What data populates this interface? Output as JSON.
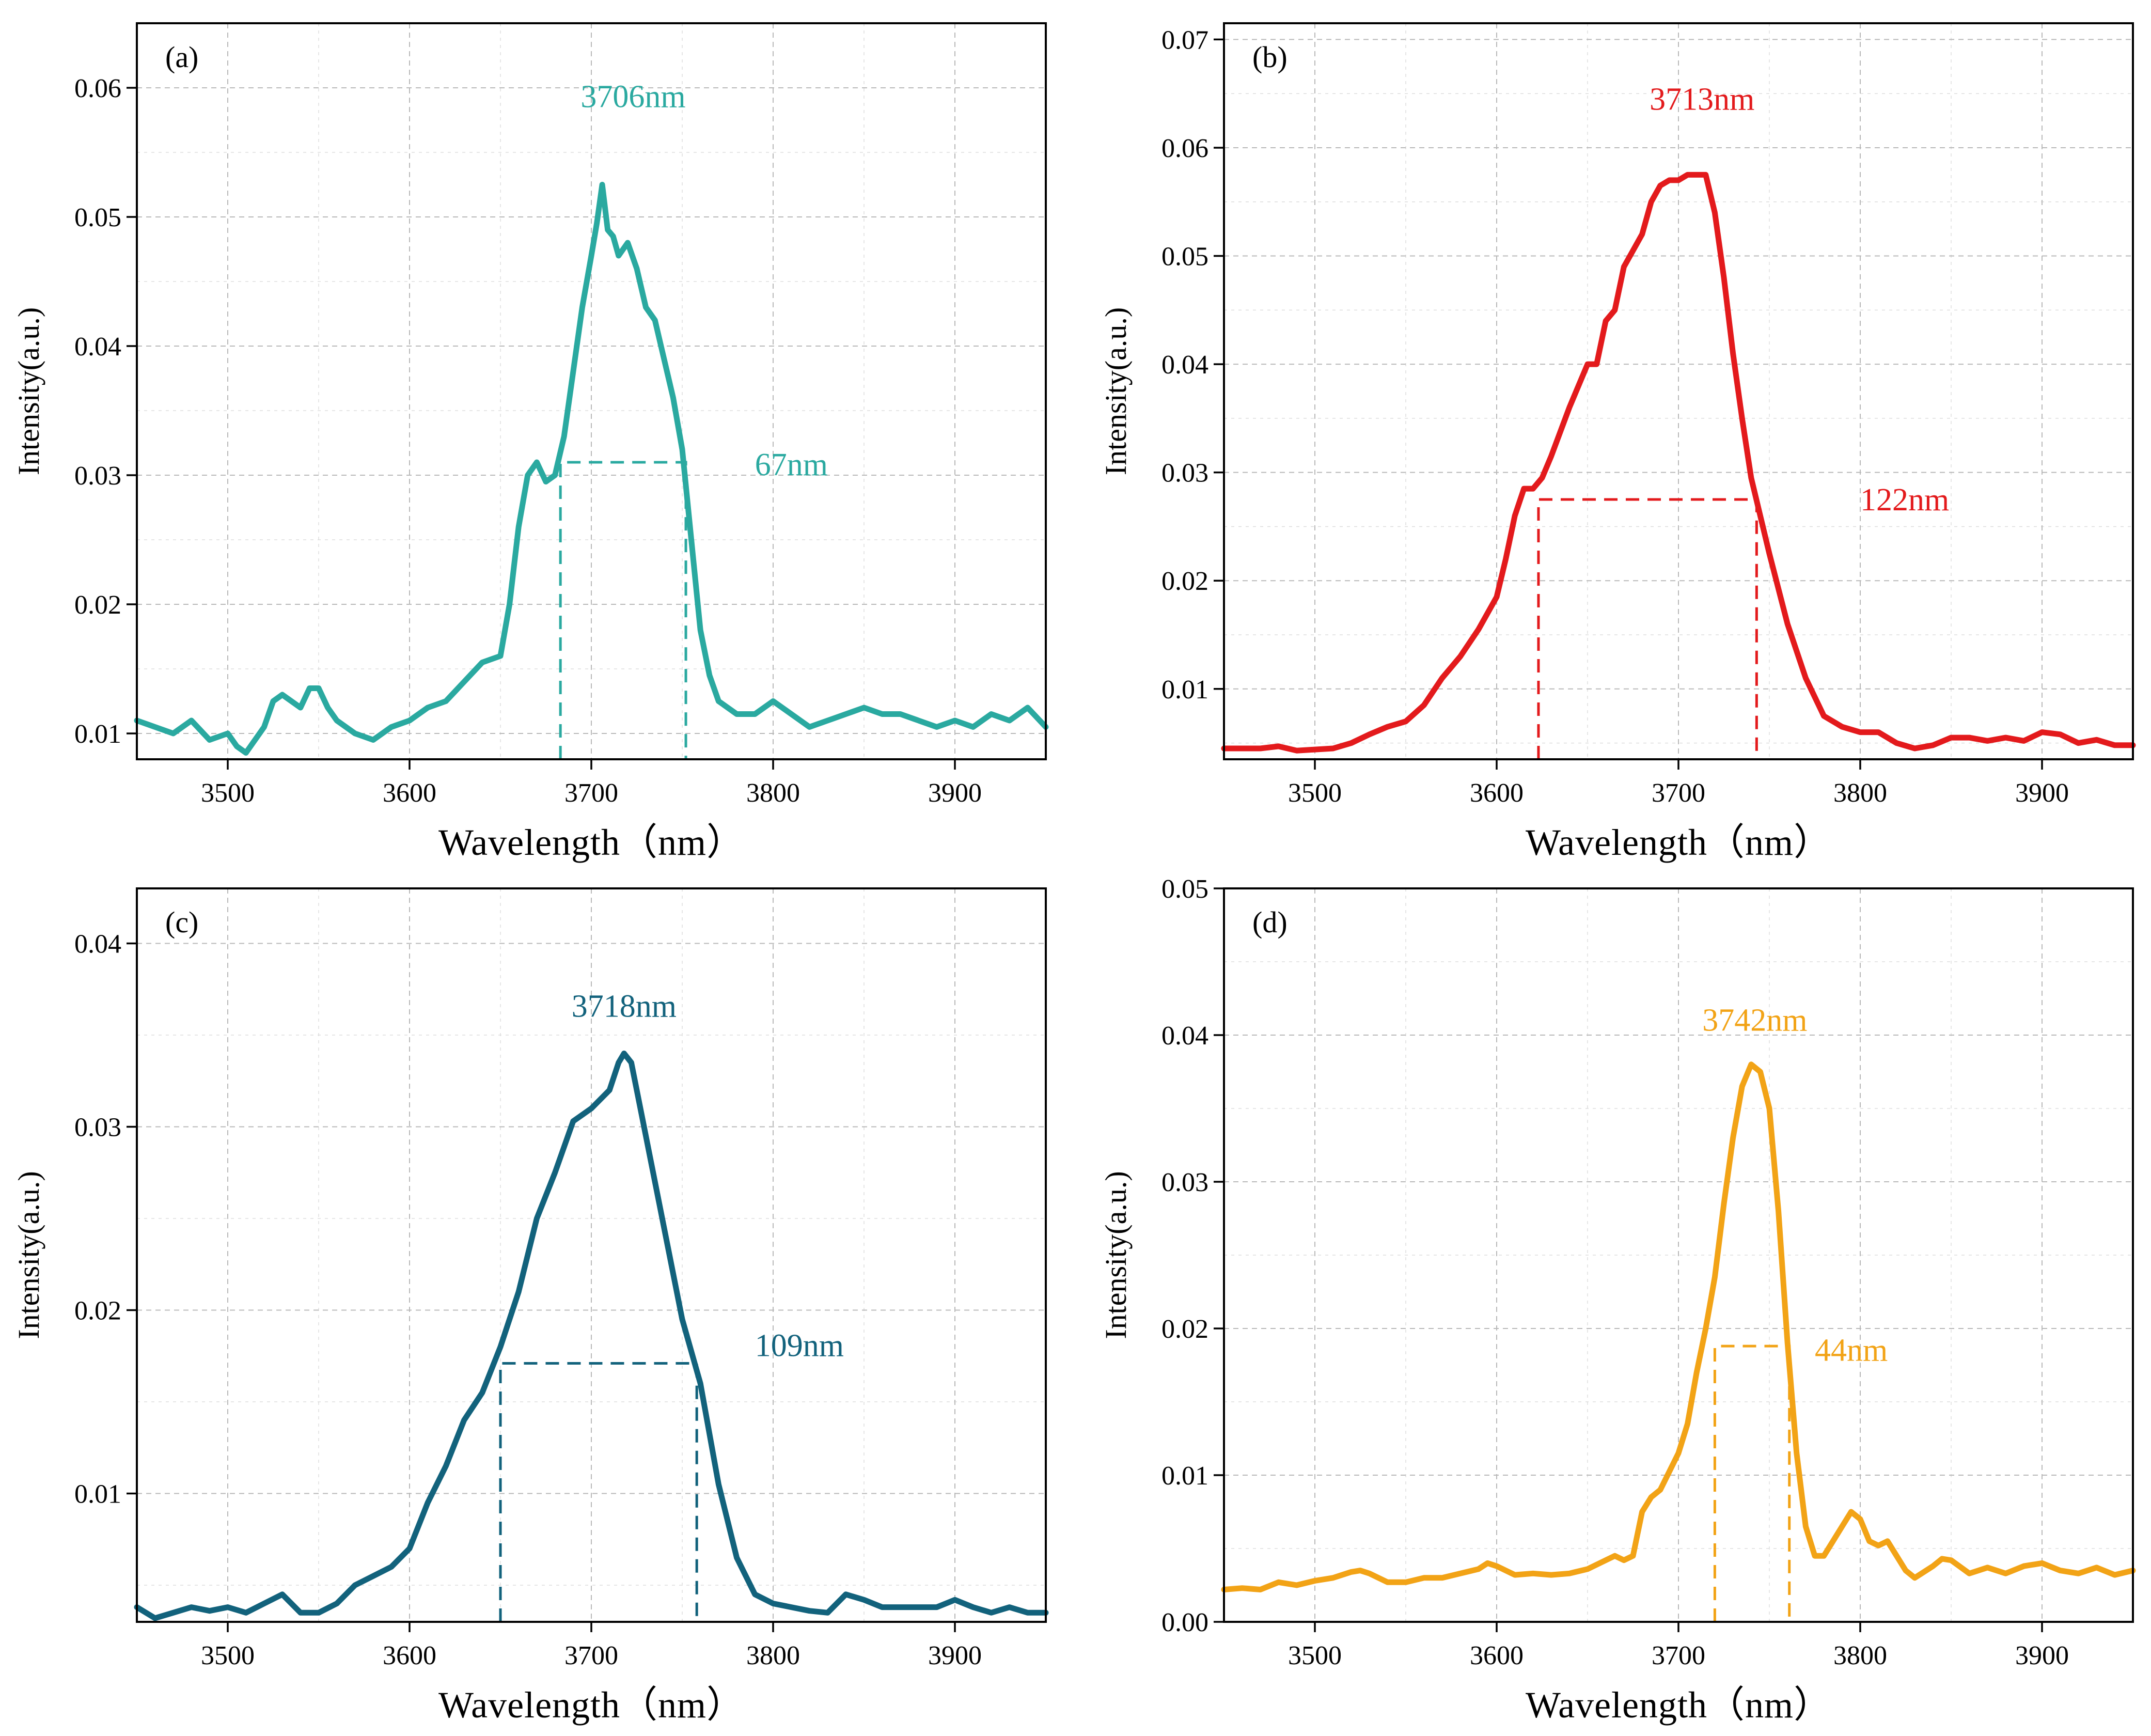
{
  "chart_data": [
    {
      "type": "line",
      "panel_label": "(a)",
      "xlabel": "Wavelength（nm）",
      "ylabel": "Intensity(a.u.)",
      "xlim": [
        3450,
        3950
      ],
      "ylim": [
        0.008,
        0.065
      ],
      "xticks": [
        3500,
        3600,
        3700,
        3800,
        3900
      ],
      "xtick_labels": [
        "3500",
        "3600",
        "3700",
        "3800",
        "3900"
      ],
      "yticks": [
        0.01,
        0.02,
        0.03,
        0.04,
        0.05,
        0.06
      ],
      "ytick_labels": [
        "0.01",
        "0.02",
        "0.03",
        "0.04",
        "0.05",
        "0.06"
      ],
      "color": "#2aa9a0",
      "peak_label": "3706nm",
      "peak_label_at": [
        3723,
        0.0585
      ],
      "fwhm_label": "67nm",
      "fwhm_label_at": [
        3790,
        0.03
      ],
      "fwhm": {
        "x1": 3683,
        "x2": 3752,
        "y": 0.031
      },
      "x": [
        3450,
        3460,
        3470,
        3480,
        3490,
        3500,
        3505,
        3510,
        3515,
        3520,
        3525,
        3530,
        3540,
        3545,
        3550,
        3555,
        3560,
        3570,
        3580,
        3590,
        3600,
        3610,
        3620,
        3630,
        3640,
        3650,
        3655,
        3660,
        3665,
        3670,
        3675,
        3680,
        3685,
        3690,
        3695,
        3700,
        3703,
        3706,
        3709,
        3712,
        3715,
        3720,
        3725,
        3730,
        3735,
        3740,
        3745,
        3750,
        3755,
        3760,
        3765,
        3770,
        3775,
        3780,
        3790,
        3800,
        3810,
        3820,
        3830,
        3840,
        3850,
        3860,
        3870,
        3880,
        3890,
        3900,
        3910,
        3920,
        3930,
        3940,
        3950
      ],
      "values": [
        0.011,
        0.0105,
        0.01,
        0.011,
        0.0095,
        0.01,
        0.009,
        0.0085,
        0.0095,
        0.0105,
        0.0125,
        0.013,
        0.012,
        0.0135,
        0.0135,
        0.012,
        0.011,
        0.01,
        0.0095,
        0.0105,
        0.011,
        0.012,
        0.0125,
        0.014,
        0.0155,
        0.016,
        0.02,
        0.026,
        0.03,
        0.031,
        0.0295,
        0.03,
        0.033,
        0.038,
        0.043,
        0.047,
        0.0495,
        0.0525,
        0.049,
        0.0485,
        0.047,
        0.048,
        0.046,
        0.043,
        0.042,
        0.039,
        0.036,
        0.032,
        0.025,
        0.018,
        0.0145,
        0.0125,
        0.012,
        0.0115,
        0.0115,
        0.0125,
        0.0115,
        0.0105,
        0.011,
        0.0115,
        0.012,
        0.0115,
        0.0115,
        0.011,
        0.0105,
        0.011,
        0.0105,
        0.0115,
        0.011,
        0.012,
        0.0105
      ]
    },
    {
      "type": "line",
      "panel_label": "(b)",
      "xlabel": "Wavelength（nm）",
      "ylabel": "Intensity(a.u.)",
      "xlim": [
        3450,
        3950
      ],
      "ylim": [
        0.0035,
        0.0715
      ],
      "xticks": [
        3500,
        3600,
        3700,
        3800,
        3900
      ],
      "xtick_labels": [
        "3500",
        "3600",
        "3700",
        "3800",
        "3900"
      ],
      "yticks": [
        0.01,
        0.02,
        0.03,
        0.04,
        0.05,
        0.06,
        0.07
      ],
      "ytick_labels": [
        "0.01",
        "0.02",
        "0.03",
        "0.04",
        "0.05",
        "0.06",
        "0.07"
      ],
      "color": "#e31a1c",
      "peak_label": "3713nm",
      "peak_label_at": [
        3713,
        0.0635
      ],
      "fwhm_label": "122nm",
      "fwhm_label_at": [
        3800,
        0.0265
      ],
      "fwhm": {
        "x1": 3623,
        "x2": 3743,
        "y": 0.0275
      },
      "x": [
        3450,
        3460,
        3470,
        3480,
        3490,
        3500,
        3510,
        3520,
        3530,
        3540,
        3550,
        3560,
        3570,
        3580,
        3590,
        3600,
        3605,
        3610,
        3615,
        3620,
        3625,
        3630,
        3640,
        3650,
        3655,
        3660,
        3665,
        3670,
        3675,
        3680,
        3685,
        3690,
        3695,
        3700,
        3705,
        3710,
        3715,
        3720,
        3725,
        3730,
        3735,
        3740,
        3745,
        3750,
        3760,
        3770,
        3780,
        3790,
        3800,
        3810,
        3820,
        3830,
        3840,
        3850,
        3860,
        3870,
        3880,
        3890,
        3900,
        3910,
        3920,
        3930,
        3940,
        3950
      ],
      "values": [
        0.0045,
        0.0045,
        0.0045,
        0.0047,
        0.0043,
        0.0044,
        0.0045,
        0.005,
        0.0058,
        0.0065,
        0.007,
        0.0085,
        0.011,
        0.013,
        0.0155,
        0.0185,
        0.022,
        0.026,
        0.0285,
        0.0285,
        0.0295,
        0.0315,
        0.036,
        0.04,
        0.04,
        0.044,
        0.045,
        0.049,
        0.0505,
        0.052,
        0.055,
        0.0565,
        0.057,
        0.057,
        0.0575,
        0.0575,
        0.0575,
        0.054,
        0.048,
        0.041,
        0.035,
        0.0295,
        0.026,
        0.0225,
        0.016,
        0.011,
        0.0075,
        0.0065,
        0.006,
        0.006,
        0.005,
        0.0045,
        0.0048,
        0.0055,
        0.0055,
        0.0052,
        0.0055,
        0.0052,
        0.006,
        0.0058,
        0.005,
        0.0053,
        0.0048,
        0.0048
      ]
    },
    {
      "type": "line",
      "panel_label": "(c)",
      "xlabel": "Wavelength（nm）",
      "ylabel": "Intensity(a.u.)",
      "xlim": [
        3450,
        3950
      ],
      "ylim": [
        0.003,
        0.043
      ],
      "xticks": [
        3500,
        3600,
        3700,
        3800,
        3900
      ],
      "xtick_labels": [
        "3500",
        "3600",
        "3700",
        "3800",
        "3900"
      ],
      "yticks": [
        0.01,
        0.02,
        0.03,
        0.04
      ],
      "ytick_labels": [
        "0.01",
        "0.02",
        "0.03",
        "0.04"
      ],
      "color": "#12627c",
      "peak_label": "3718nm",
      "peak_label_at": [
        3718,
        0.036
      ],
      "fwhm_label": "109nm",
      "fwhm_label_at": [
        3790,
        0.0175
      ],
      "fwhm": {
        "x1": 3650,
        "x2": 3758,
        "y": 0.0171
      },
      "x": [
        3450,
        3460,
        3470,
        3480,
        3490,
        3500,
        3510,
        3520,
        3530,
        3540,
        3550,
        3560,
        3570,
        3580,
        3590,
        3600,
        3610,
        3620,
        3630,
        3640,
        3650,
        3660,
        3670,
        3680,
        3690,
        3700,
        3710,
        3715,
        3718,
        3722,
        3730,
        3740,
        3750,
        3760,
        3770,
        3780,
        3790,
        3800,
        3810,
        3820,
        3830,
        3840,
        3850,
        3860,
        3870,
        3880,
        3890,
        3900,
        3910,
        3920,
        3930,
        3940,
        3950
      ],
      "values": [
        0.0038,
        0.0032,
        0.0035,
        0.0038,
        0.0036,
        0.0038,
        0.0035,
        0.004,
        0.0045,
        0.0035,
        0.0035,
        0.004,
        0.005,
        0.0055,
        0.006,
        0.007,
        0.0095,
        0.0115,
        0.014,
        0.0155,
        0.018,
        0.021,
        0.025,
        0.0275,
        0.0303,
        0.031,
        0.032,
        0.0335,
        0.034,
        0.0335,
        0.0295,
        0.0245,
        0.0195,
        0.016,
        0.0105,
        0.0065,
        0.0045,
        0.004,
        0.0038,
        0.0036,
        0.0035,
        0.0045,
        0.0042,
        0.0038,
        0.0038,
        0.0038,
        0.0038,
        0.0042,
        0.0038,
        0.0035,
        0.0038,
        0.0035,
        0.0035
      ]
    },
    {
      "type": "line",
      "panel_label": "(d)",
      "xlabel": "Wavelength（nm）",
      "ylabel": "Intensity(a.u.)",
      "xlim": [
        3450,
        3950
      ],
      "ylim": [
        0.0,
        0.05
      ],
      "xticks": [
        3500,
        3600,
        3700,
        3800,
        3900
      ],
      "xtick_labels": [
        "3500",
        "3600",
        "3700",
        "3800",
        "3900"
      ],
      "yticks": [
        0.0,
        0.01,
        0.02,
        0.03,
        0.04,
        0.05
      ],
      "ytick_labels": [
        "0.00",
        "0.01",
        "0.02",
        "0.03",
        "0.04",
        "0.05"
      ],
      "color": "#f2a316",
      "peak_label": "3742nm",
      "peak_label_at": [
        3742,
        0.0403
      ],
      "fwhm_label": "44nm",
      "fwhm_label_at": [
        3775,
        0.0178
      ],
      "fwhm": {
        "x1": 3720,
        "x2": 3761,
        "y": 0.0188
      },
      "x": [
        3450,
        3460,
        3470,
        3480,
        3490,
        3500,
        3510,
        3520,
        3525,
        3530,
        3540,
        3550,
        3560,
        3570,
        3580,
        3590,
        3595,
        3600,
        3610,
        3620,
        3630,
        3640,
        3650,
        3660,
        3665,
        3670,
        3675,
        3680,
        3685,
        3690,
        3700,
        3705,
        3710,
        3715,
        3720,
        3725,
        3730,
        3735,
        3740,
        3745,
        3750,
        3755,
        3760,
        3765,
        3770,
        3775,
        3780,
        3785,
        3790,
        3795,
        3800,
        3805,
        3810,
        3815,
        3820,
        3825,
        3830,
        3840,
        3845,
        3850,
        3860,
        3870,
        3880,
        3890,
        3900,
        3910,
        3920,
        3930,
        3940,
        3950
      ],
      "values": [
        0.0022,
        0.0023,
        0.0022,
        0.0027,
        0.0025,
        0.0028,
        0.003,
        0.0034,
        0.0035,
        0.0033,
        0.0027,
        0.0027,
        0.003,
        0.003,
        0.0033,
        0.0036,
        0.004,
        0.0038,
        0.0032,
        0.0033,
        0.0032,
        0.0033,
        0.0036,
        0.0042,
        0.0045,
        0.0042,
        0.0045,
        0.0075,
        0.0085,
        0.009,
        0.0115,
        0.0135,
        0.017,
        0.02,
        0.0235,
        0.0285,
        0.033,
        0.0365,
        0.038,
        0.0375,
        0.035,
        0.028,
        0.019,
        0.0115,
        0.0065,
        0.0045,
        0.0045,
        0.0055,
        0.0065,
        0.0075,
        0.007,
        0.0055,
        0.0052,
        0.0055,
        0.0045,
        0.0035,
        0.003,
        0.0038,
        0.0043,
        0.0042,
        0.0033,
        0.0037,
        0.0033,
        0.0038,
        0.004,
        0.0035,
        0.0033,
        0.0037,
        0.0032,
        0.0035
      ]
    }
  ]
}
